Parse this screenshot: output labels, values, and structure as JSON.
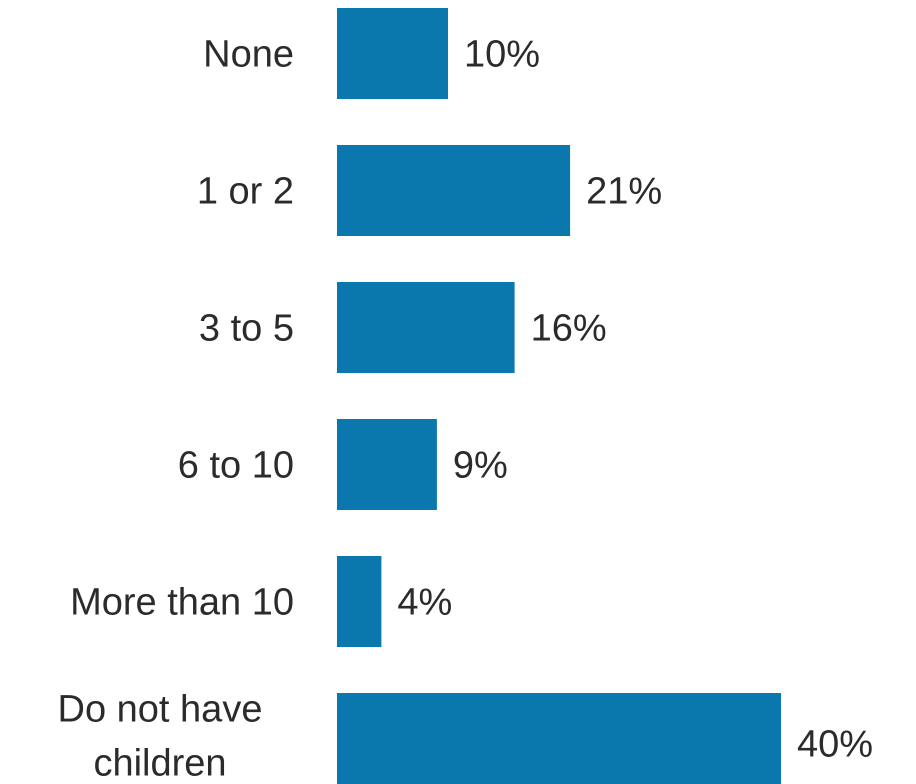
{
  "chart_data": {
    "type": "bar",
    "orientation": "horizontal",
    "categories": [
      [
        "None"
      ],
      [
        "1 or 2"
      ],
      [
        "3 to 5"
      ],
      [
        "6 to 10"
      ],
      [
        "More than 10"
      ],
      [
        "Do not have",
        "children"
      ]
    ],
    "values": [
      10,
      21,
      16,
      9,
      4,
      40
    ],
    "value_labels": [
      "10%",
      "21%",
      "16%",
      "9%",
      "4%",
      "40%"
    ],
    "value_unit": "%",
    "xlim": [
      0,
      40
    ],
    "grid": false,
    "legend": "none",
    "colors": {
      "bar": "#0a78ad",
      "text": "#2b2b2b"
    }
  }
}
